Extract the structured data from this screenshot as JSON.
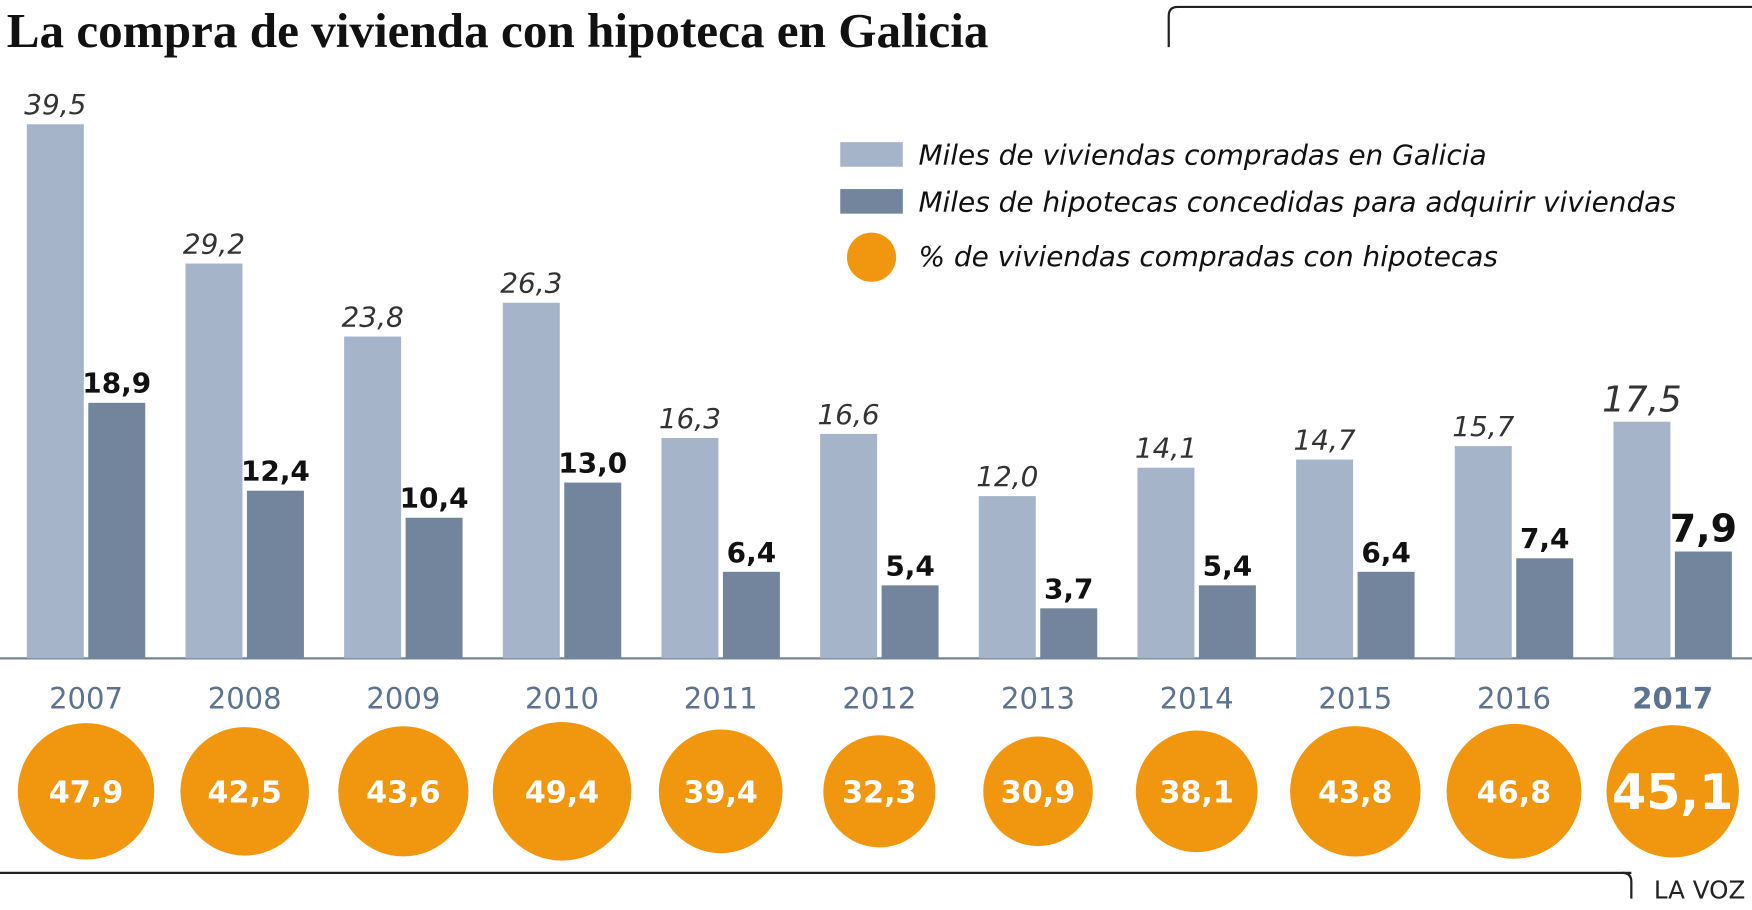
{
  "chart_data": {
    "type": "bar",
    "title": "La compra de vivienda con hipoteca en Galicia",
    "source": "LA VOZ",
    "categories": [
      "2007",
      "2008",
      "2009",
      "2010",
      "2011",
      "2012",
      "2013",
      "2014",
      "2015",
      "2016",
      "2017"
    ],
    "series": [
      {
        "name": "Miles de viviendas compradas en Galicia",
        "color": "#a6b4c9",
        "values": [
          39.5,
          29.2,
          23.8,
          26.3,
          16.3,
          16.6,
          12.0,
          14.1,
          14.7,
          15.7,
          17.5
        ],
        "value_labels": [
          "39,5",
          "29,2",
          "23,8",
          "26,3",
          "16,3",
          "16,6",
          "12,0",
          "14,1",
          "14,7",
          "15,7",
          "17,5"
        ]
      },
      {
        "name": "Miles de hipotecas concedidas para adquirir viviendas",
        "color": "#73859d",
        "values": [
          18.9,
          12.4,
          10.4,
          13.0,
          6.4,
          5.4,
          3.7,
          5.4,
          6.4,
          7.4,
          7.9
        ],
        "value_labels": [
          "18,9",
          "12,4",
          "10,4",
          "13,0",
          "6,4",
          "5,4",
          "3,7",
          "5,4",
          "6,4",
          "7,4",
          "7,9"
        ]
      },
      {
        "name": "% de viviendas compradas con hipotecas",
        "color": "#f0960f",
        "values": [
          47.9,
          42.5,
          43.6,
          49.4,
          39.4,
          32.3,
          30.9,
          38.1,
          43.8,
          46.8,
          45.1
        ],
        "value_labels": [
          "47,9",
          "42,5",
          "43,6",
          "49,4",
          "39,4",
          "32,3",
          "30,9",
          "38,1",
          "43,8",
          "46,8",
          "45,1"
        ]
      }
    ]
  }
}
